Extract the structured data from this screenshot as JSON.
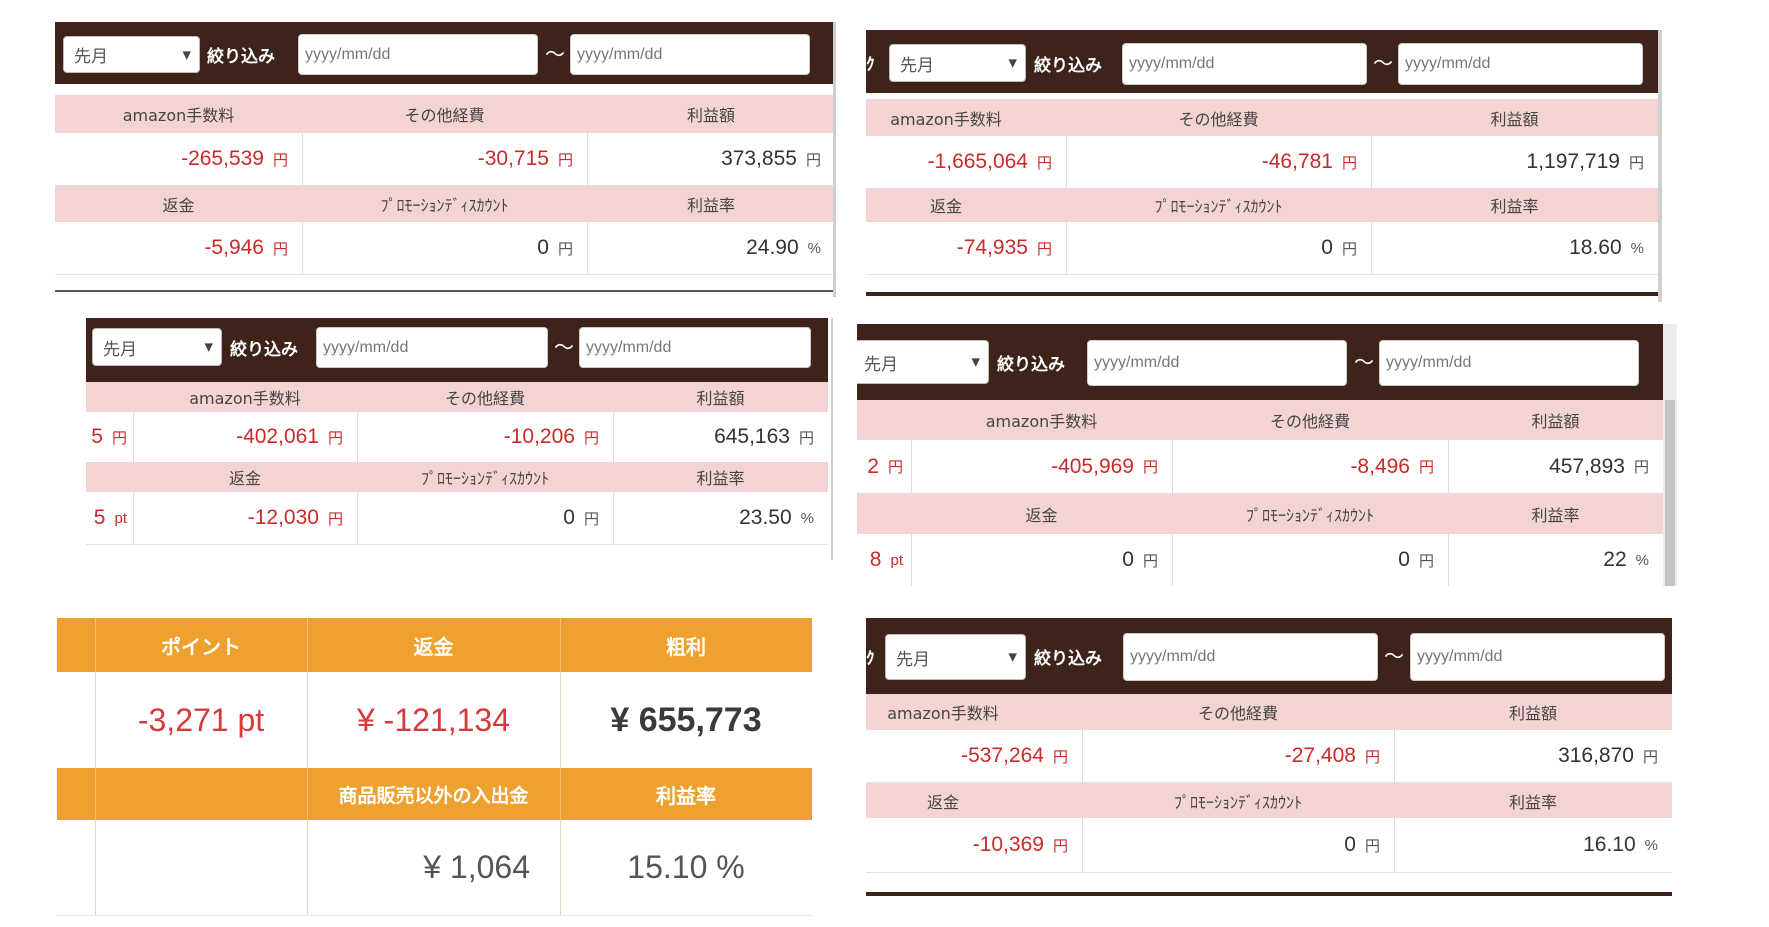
{
  "common": {
    "period_select": "先月",
    "filter_label": "絞り込み",
    "date_placeholder": "yyyy/mm/dd",
    "tilde": "〜",
    "yen_unit": "円",
    "pct_unit": "%",
    "pt_unit": "pt",
    "h_fee": "amazon手数料",
    "h_other": "その他経費",
    "h_profit": "利益額",
    "h_refund": "返金",
    "h_promo": "ﾌﾟﾛﾓｰｼｮﾝﾃﾞｨｽｶｳﾝﾄ",
    "h_rate": "利益率"
  },
  "panel1": {
    "fee": "-265,539",
    "other": "-30,715",
    "profit": "373,855",
    "refund": "-5,946",
    "promo": "0",
    "rate": "24.90"
  },
  "panel2": {
    "edge_label": "ｸ",
    "fee": "-1,665,064",
    "other": "-46,781",
    "profit": "1,197,719",
    "refund": "-74,935",
    "promo": "0",
    "rate": "18.60"
  },
  "panel3": {
    "edge_val1": "5",
    "edge_val2": "5",
    "fee": "-402,061",
    "other": "-10,206",
    "profit": "645,163",
    "refund": "-12,030",
    "promo": "0",
    "rate": "23.50"
  },
  "panel4": {
    "edge_val1": "2",
    "edge_val2": "8",
    "fee": "-405,969",
    "other": "-8,496",
    "profit": "457,893",
    "refund": "0",
    "promo": "0",
    "rate": "22"
  },
  "panel5": {
    "h_point": "ポイント",
    "h_refund": "返金",
    "h_gross": "粗利",
    "point": "-3,271 pt",
    "refund": "¥ -121,134",
    "gross": "¥ 655,773",
    "h_nonsales": "商品販売以外の入出金",
    "h_rate": "利益率",
    "nonsales": "¥ 1,064",
    "rate": "15.10 %"
  },
  "panel6": {
    "edge_label": "ｸ",
    "fee": "-537,264",
    "other": "-27,408",
    "profit": "316,870",
    "refund": "-10,369",
    "promo": "0",
    "rate": "16.10"
  }
}
